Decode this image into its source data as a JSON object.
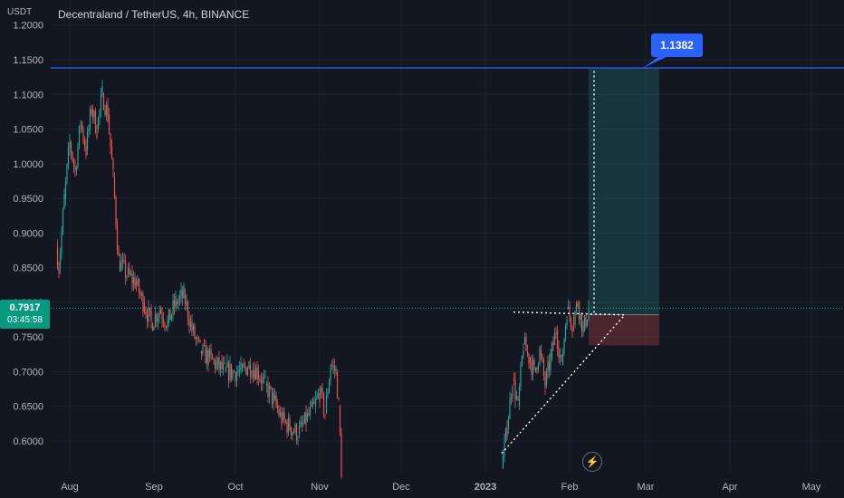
{
  "header": {
    "title": "Decentraland / TetherUS, 4h, BINANCE",
    "currency": "USDT"
  },
  "last_price": {
    "value": "0.7917",
    "countdown": "03:45:58",
    "color": "#089981"
  },
  "callout": {
    "label": "1.1382"
  },
  "colors": {
    "background": "#131722",
    "up": "#26a69a",
    "down": "#ef5350",
    "grid": "#1e222d",
    "axis_text": "#b2b5be",
    "hline": "#2962ff",
    "profit_zone": "rgba(38,166,154,0.22)",
    "loss_zone": "rgba(239,83,80,0.25)"
  },
  "icons": {
    "replay": "lightning-icon"
  },
  "chart_data": {
    "type": "candlestick",
    "title": "Decentraland / TetherUS, 4h, BINANCE",
    "yunit": "USDT",
    "ylim": [
      0.555,
      1.22
    ],
    "yticks": [
      "1.2000",
      "1.1500",
      "1.1000",
      "1.0500",
      "1.0000",
      "0.9500",
      "0.9000",
      "0.8500",
      "0.8000",
      "0.7500",
      "0.7000",
      "0.6500",
      "0.6000"
    ],
    "xticks": [
      "Aug",
      "Sep",
      "Oct",
      "Nov",
      "Dec",
      "2023",
      "Feb",
      "Mar",
      "Apr",
      "May"
    ],
    "grid": true,
    "horizontal_line": 1.1382,
    "last_price_line": 0.7917,
    "segments": [
      {
        "start": "2022-07-27",
        "end": "2022-11-09",
        "points": [
          [
            "2022-07-27",
            0.88
          ],
          [
            "2022-07-28",
            0.85
          ],
          [
            "2022-07-30",
            0.95
          ],
          [
            "2022-08-01",
            1.03
          ],
          [
            "2022-08-03",
            0.99
          ],
          [
            "2022-08-05",
            1.06
          ],
          [
            "2022-08-07",
            1.02
          ],
          [
            "2022-08-09",
            1.08
          ],
          [
            "2022-08-11",
            1.05
          ],
          [
            "2022-08-13",
            1.1
          ],
          [
            "2022-08-15",
            1.07
          ],
          [
            "2022-08-17",
            0.98
          ],
          [
            "2022-08-19",
            0.86
          ],
          [
            "2022-08-22",
            0.84
          ],
          [
            "2022-08-25",
            0.83
          ],
          [
            "2022-08-28",
            0.8
          ],
          [
            "2022-08-31",
            0.77
          ],
          [
            "2022-09-03",
            0.79
          ],
          [
            "2022-09-06",
            0.77
          ],
          [
            "2022-09-09",
            0.8
          ],
          [
            "2022-09-12",
            0.81
          ],
          [
            "2022-09-15",
            0.76
          ],
          [
            "2022-09-18",
            0.73
          ],
          [
            "2022-09-21",
            0.72
          ],
          [
            "2022-09-24",
            0.71
          ],
          [
            "2022-09-27",
            0.7
          ],
          [
            "2022-09-30",
            0.7
          ],
          [
            "2022-10-03",
            0.7
          ],
          [
            "2022-10-06",
            0.71
          ],
          [
            "2022-10-09",
            0.7
          ],
          [
            "2022-10-12",
            0.68
          ],
          [
            "2022-10-15",
            0.66
          ],
          [
            "2022-10-18",
            0.63
          ],
          [
            "2022-10-21",
            0.62
          ],
          [
            "2022-10-24",
            0.61
          ],
          [
            "2022-10-27",
            0.63
          ],
          [
            "2022-10-30",
            0.65
          ],
          [
            "2022-11-01",
            0.67
          ],
          [
            "2022-11-03",
            0.64
          ],
          [
            "2022-11-05",
            0.71
          ],
          [
            "2022-11-07",
            0.7
          ],
          [
            "2022-11-08",
            0.65
          ],
          [
            "2022-11-09",
            0.56
          ]
        ]
      },
      {
        "start": "2023-01-07",
        "end": "2023-02-08",
        "points": [
          [
            "2023-01-07",
            0.56
          ],
          [
            "2023-01-09",
            0.62
          ],
          [
            "2023-01-11",
            0.69
          ],
          [
            "2023-01-13",
            0.65
          ],
          [
            "2023-01-15",
            0.74
          ],
          [
            "2023-01-17",
            0.72
          ],
          [
            "2023-01-19",
            0.7
          ],
          [
            "2023-01-21",
            0.73
          ],
          [
            "2023-01-23",
            0.68
          ],
          [
            "2023-01-25",
            0.72
          ],
          [
            "2023-01-27",
            0.76
          ],
          [
            "2023-01-29",
            0.71
          ],
          [
            "2023-01-31",
            0.79
          ],
          [
            "2023-02-02",
            0.77
          ],
          [
            "2023-02-04",
            0.8
          ],
          [
            "2023-02-06",
            0.76
          ],
          [
            "2023-02-08",
            0.7917
          ]
        ]
      }
    ],
    "position": {
      "type": "long",
      "entry": 0.782,
      "target": 1.1382,
      "stop": 0.738
    }
  }
}
